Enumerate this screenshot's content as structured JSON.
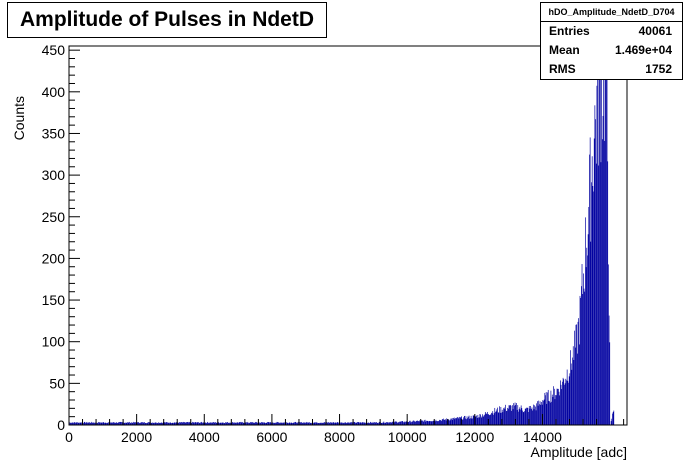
{
  "chart_data": {
    "type": "bar",
    "title": "Amplitude of Pulses in NdetD",
    "xlabel": "Amplitude [adc]",
    "ylabel": "Counts",
    "xlim": [
      0,
      16500
    ],
    "ylim": [
      0,
      455
    ],
    "x_ticks": [
      0,
      2000,
      4000,
      6000,
      8000,
      10000,
      12000,
      14000
    ],
    "y_ticks": [
      0,
      50,
      100,
      150,
      200,
      250,
      300,
      350,
      400,
      450
    ],
    "x_tick_labels": [
      "0",
      "2000",
      "4000",
      "6000",
      "8000",
      "10000",
      "12000",
      "14000"
    ],
    "y_tick_labels": [
      "0",
      "50",
      "100",
      "150",
      "200",
      "250",
      "300",
      "350",
      "400",
      "450"
    ],
    "bar_color": "#0000a0",
    "series": [
      {
        "x": [
          0,
          1000,
          2000,
          3000,
          4000,
          5000,
          6000,
          7000,
          8000,
          9000,
          10000,
          10500,
          11000,
          11500,
          12000,
          12300,
          12600,
          12900,
          13200,
          13500,
          13800,
          14000,
          14200,
          14400,
          14600,
          14800,
          15000,
          15100,
          15200,
          15300,
          15400,
          15500,
          15600,
          15700,
          15800,
          15900,
          16000,
          16100
        ],
        "values": [
          3,
          3,
          3,
          3,
          3,
          3,
          3,
          3,
          3,
          3,
          4,
          5,
          6,
          8,
          10,
          13,
          17,
          20,
          22,
          18,
          22,
          30,
          35,
          40,
          52,
          70,
          100,
          130,
          180,
          230,
          280,
          340,
          380,
          410,
          425,
          410,
          0,
          20
        ]
      }
    ]
  },
  "stats": {
    "name": "hDO_Amplitude_NdetD_D704",
    "rows": [
      {
        "label": "Entries",
        "value": "40061"
      },
      {
        "label": "Mean",
        "value": "1.469e+04"
      },
      {
        "label": "RMS",
        "value": "1752"
      }
    ]
  }
}
